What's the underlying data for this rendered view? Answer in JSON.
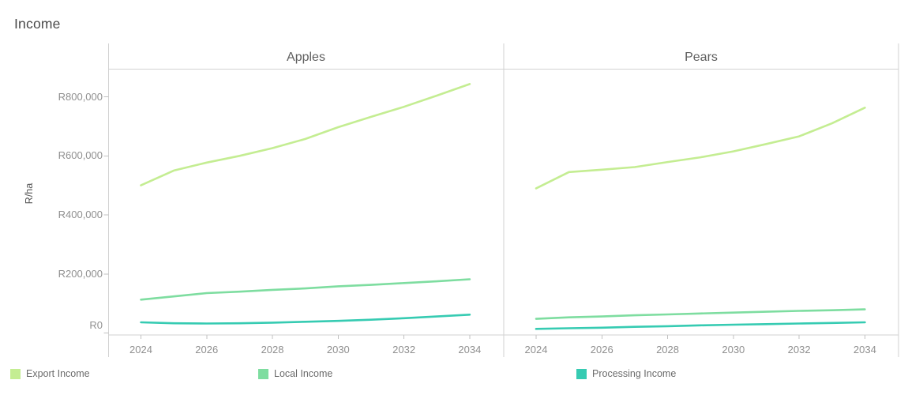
{
  "title": "Income",
  "chart_data": {
    "type": "line",
    "title": "Income",
    "ylabel": "R/ha",
    "xlabel": "",
    "grid": false,
    "legend_position": "bottom",
    "x": [
      2024,
      2025,
      2026,
      2027,
      2028,
      2029,
      2030,
      2031,
      2032,
      2033,
      2034
    ],
    "x_tick_labels": [
      "2024",
      "2026",
      "2028",
      "2030",
      "2032",
      "2034"
    ],
    "y_ticks": [
      {
        "value": 0,
        "label": "R0"
      },
      {
        "value": 200000,
        "label": "R200,000"
      },
      {
        "value": 400000,
        "label": "R400,000"
      },
      {
        "value": 600000,
        "label": "R600,000"
      },
      {
        "value": 800000,
        "label": "R800,000"
      }
    ],
    "ylim": [
      0,
      895000
    ],
    "panels": [
      {
        "title": "Apples",
        "series": [
          {
            "name": "Export Income",
            "color": "#c4ed92",
            "values": [
              500000,
              550000,
              577000,
              600000,
              626000,
              657000,
              697000,
              732000,
              766000,
              804000,
              843000
            ]
          },
          {
            "name": "Local Income",
            "color": "#7edda0",
            "values": [
              113000,
              124000,
              135000,
              140000,
              146000,
              151000,
              158000,
              163000,
              169000,
              175000,
              182000
            ]
          },
          {
            "name": "Processing Income",
            "color": "#36cbb2",
            "values": [
              36000,
              33000,
              32000,
              33000,
              35000,
              38000,
              41000,
              45000,
              50000,
              56000,
              62000
            ]
          }
        ]
      },
      {
        "title": "Pears",
        "series": [
          {
            "name": "Export Income",
            "color": "#c4ed92",
            "values": [
              490000,
              545000,
              553000,
              562000,
              579000,
              595000,
              615000,
              640000,
              666000,
              710000,
              763000
            ]
          },
          {
            "name": "Local Income",
            "color": "#7edda0",
            "values": [
              48000,
              53000,
              56000,
              60000,
              63000,
              66000,
              69000,
              72000,
              75000,
              77000,
              80000
            ]
          },
          {
            "name": "Processing Income",
            "color": "#36cbb2",
            "values": [
              14000,
              16000,
              18000,
              21000,
              23000,
              26000,
              28000,
              30000,
              32000,
              34000,
              36000
            ]
          }
        ]
      }
    ]
  },
  "legend": [
    {
      "label": "Export Income",
      "color": "#c4ed92"
    },
    {
      "label": "Local Income",
      "color": "#7edda0"
    },
    {
      "label": "Processing Income",
      "color": "#36cbb2"
    }
  ]
}
